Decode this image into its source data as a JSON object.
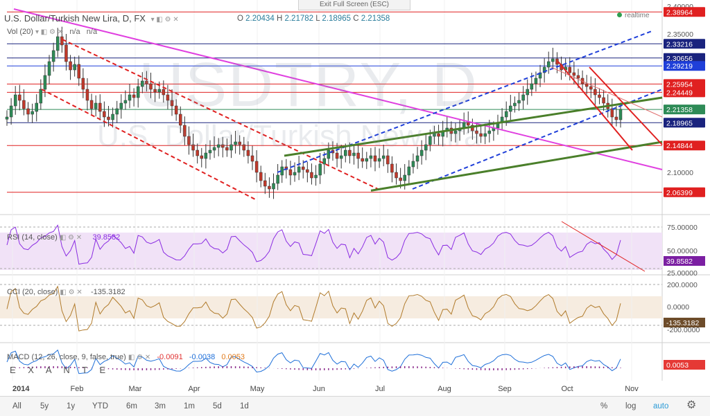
{
  "header": {
    "exit_label": "Exit Full Screen (ESC)",
    "title": "U.S. Dollar/Turkish New Lira, D, FX",
    "open_label": "O",
    "open": "2.20434",
    "high_label": "H",
    "high": "2.21782",
    "low_label": "L",
    "low": "2.18965",
    "close_label": "C",
    "close": "2.21358",
    "realtime": "realtime"
  },
  "watermark": {
    "symbol": "USDTRY, D",
    "name": "U.S. Dollar/Turkish New Lira"
  },
  "volume": {
    "label": "Vol (20)",
    "v1": "n/a",
    "v2": "n/a"
  },
  "rsi": {
    "label": "RSI (14, close)",
    "value": "39.8582",
    "last": "39.8582",
    "color": "#8a2be2",
    "ticks": [
      "75.00000",
      "50.00000",
      "25.00000"
    ]
  },
  "cci": {
    "label": "CCI (20, close)",
    "value": "-135.3182",
    "last": "-135.3182",
    "color": "#b07a2a",
    "ticks": [
      "200.0000",
      "0.0000",
      "-200.0000"
    ]
  },
  "macd": {
    "label": "MACD (12, 26, close, 9, false, true)",
    "v1": "-0.0091",
    "v2": "-0.0038",
    "v3": "0.0053",
    "last": "0.0053",
    "brand": "E X A N T E"
  },
  "toolbar": {
    "ranges": [
      "All",
      "5y",
      "1y",
      "YTD",
      "6m",
      "3m",
      "1m",
      "5d",
      "1d"
    ],
    "auto": "auto",
    "log": "log",
    "percent": "%"
  },
  "colors": {
    "up": "#2e8b57",
    "down": "#c0392b",
    "accent": "#2a9ad6",
    "magenta": "#e040e0",
    "green_trend": "#4a7f2a",
    "blue_channel": "#1f3fd9",
    "red_hline": "#e02020",
    "navy_hline": "#1a237e"
  },
  "chart_data": {
    "type": "candlestick",
    "title": "U.S. Dollar/Turkish New Lira, D, FX",
    "x_tick_labels": [
      "2014",
      "Feb",
      "Mar",
      "Apr",
      "May",
      "Jun",
      "Jul",
      "Aug",
      "Sep",
      "Oct",
      "Nov"
    ],
    "y_tick_labels": [
      "2.40000",
      "2.35000",
      "2.10000"
    ],
    "ylim": [
      2.03,
      2.405
    ],
    "price_labels": [
      {
        "value": 2.38964,
        "text": "2.38964",
        "color": "#e02020"
      },
      {
        "value": 2.33216,
        "text": "2.33216",
        "color": "#1a237e"
      },
      {
        "value": 2.30656,
        "text": "2.30656",
        "color": "#1a237e"
      },
      {
        "value": 2.29219,
        "text": "2.29219",
        "color": "#1f3fd9"
      },
      {
        "value": 2.25954,
        "text": "2.25954",
        "color": "#e02020"
      },
      {
        "value": 2.24449,
        "text": "2.24449",
        "color": "#e02020"
      },
      {
        "value": 2.21358,
        "text": "2.21358",
        "color": "#2e8b57"
      },
      {
        "value": 2.18965,
        "text": "2.18965",
        "color": "#1a237e"
      },
      {
        "value": 2.14844,
        "text": "2.14844",
        "color": "#e02020"
      },
      {
        "value": 2.06399,
        "text": "2.06399",
        "color": "#e02020"
      }
    ],
    "close_series": [
      2.2,
      2.22,
      2.24,
      2.23,
      2.215,
      2.205,
      2.21,
      2.225,
      2.25,
      2.275,
      2.3,
      2.32,
      2.345,
      2.33,
      2.3,
      2.285,
      2.295,
      2.27,
      2.25,
      2.23,
      2.215,
      2.225,
      2.21,
      2.2,
      2.195,
      2.205,
      2.215,
      2.225,
      2.23,
      2.24,
      2.235,
      2.255,
      2.265,
      2.26,
      2.25,
      2.245,
      2.25,
      2.24,
      2.23,
      2.22,
      2.205,
      2.185,
      2.165,
      2.15,
      2.14,
      2.13,
      2.125,
      2.135,
      2.14,
      2.145,
      2.15,
      2.145,
      2.14,
      2.15,
      2.155,
      2.15,
      2.14,
      2.13,
      2.12,
      2.1,
      2.085,
      2.075,
      2.07,
      2.08,
      2.095,
      2.11,
      2.105,
      2.095,
      2.1,
      2.11,
      2.105,
      2.1,
      2.09,
      2.095,
      2.115,
      2.125,
      2.14,
      2.135,
      2.125,
      2.13,
      2.14,
      2.13,
      2.135,
      2.125,
      2.12,
      2.125,
      2.13,
      2.12,
      2.125,
      2.13,
      2.115,
      2.1,
      2.09,
      2.085,
      2.095,
      2.11,
      2.12,
      2.13,
      2.14,
      2.15,
      2.165,
      2.17,
      2.165,
      2.175,
      2.18,
      2.17,
      2.175,
      2.18,
      2.19,
      2.185,
      2.175,
      2.17,
      2.165,
      2.17,
      2.175,
      2.18,
      2.19,
      2.2,
      2.21,
      2.22,
      2.225,
      2.23,
      2.24,
      2.25,
      2.26,
      2.27,
      2.28,
      2.29,
      2.3,
      2.305,
      2.295,
      2.285,
      2.29,
      2.28,
      2.275,
      2.27,
      2.26,
      2.255,
      2.25,
      2.24,
      2.235,
      2.225,
      2.215,
      2.2,
      2.195,
      2.214
    ],
    "trendlines": [
      {
        "name": "magenta-downtrend",
        "color": "#e040e0",
        "style": "solid"
      },
      {
        "name": "red-dashed-channel",
        "color": "#e02020",
        "style": "dashed"
      },
      {
        "name": "blue-dashed-channel",
        "color": "#1f3fd9",
        "style": "dashed"
      },
      {
        "name": "green-uptrend",
        "color": "#4a7f2a",
        "style": "solid"
      }
    ]
  }
}
